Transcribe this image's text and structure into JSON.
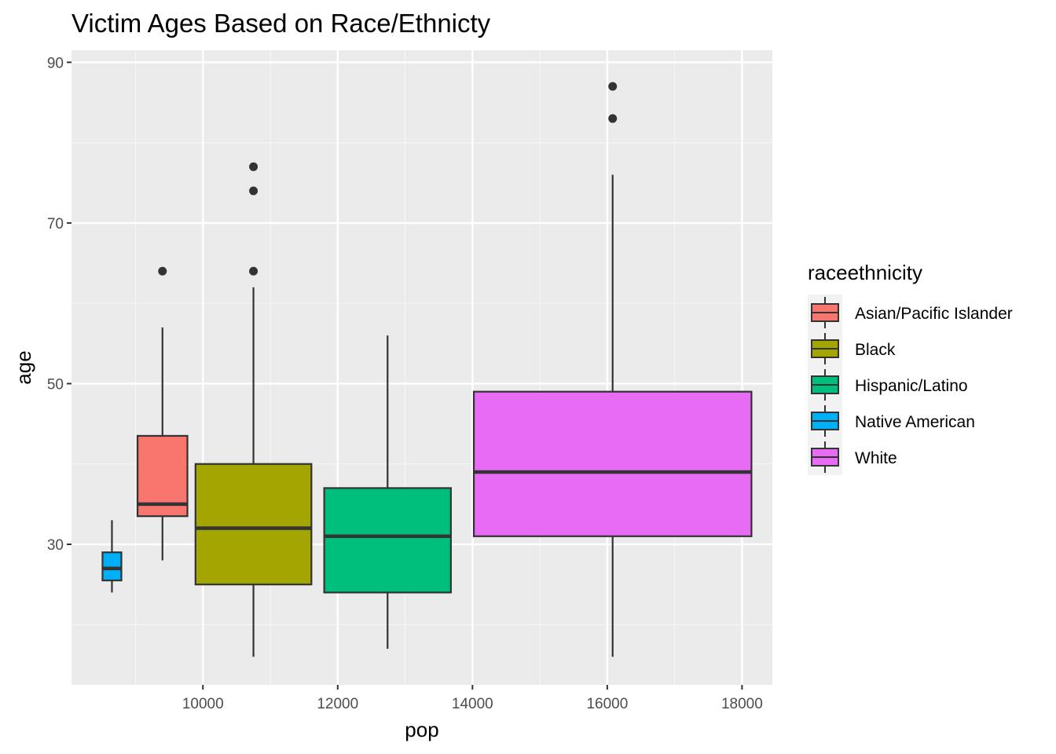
{
  "chart_data": {
    "type": "boxplot",
    "title": "Victim Ages Based on Race/Ethnicty",
    "xlabel": "pop",
    "ylabel": "age",
    "xlim": [
      8050,
      18450
    ],
    "ylim": [
      12.5,
      91.5
    ],
    "x_ticks": [
      10000,
      12000,
      14000,
      16000,
      18000
    ],
    "y_ticks": [
      30,
      50,
      70,
      90
    ],
    "grid": true,
    "legend": {
      "title": "raceethnicity",
      "position": "right",
      "entries": [
        "Asian/Pacific Islander",
        "Black",
        "Hispanic/Latino",
        "Native American",
        "White"
      ]
    },
    "series": [
      {
        "name": "Asian/Pacific Islander",
        "color": "#F8766D",
        "x_min": 9030,
        "x_max": 9770,
        "x_center": 9400,
        "whisker_low": 28,
        "q1": 33.5,
        "median": 35,
        "q3": 43.5,
        "whisker_high": 57,
        "outliers": [
          64
        ]
      },
      {
        "name": "Black",
        "color": "#A3A500",
        "x_min": 9890,
        "x_max": 11610,
        "x_center": 10750,
        "whisker_low": 16,
        "q1": 25,
        "median": 32,
        "q3": 40,
        "whisker_high": 62,
        "outliers": [
          64,
          74,
          77
        ]
      },
      {
        "name": "Hispanic/Latino",
        "color": "#00BF7D",
        "x_min": 11800,
        "x_max": 13680,
        "x_center": 12740,
        "whisker_low": 17,
        "q1": 24,
        "median": 31,
        "q3": 37,
        "whisker_high": 56,
        "outliers": []
      },
      {
        "name": "Native American",
        "color": "#00B0F6",
        "x_min": 8510,
        "x_max": 8790,
        "x_center": 8650,
        "whisker_low": 24,
        "q1": 25.5,
        "median": 27,
        "q3": 29,
        "whisker_high": 33,
        "outliers": []
      },
      {
        "name": "White",
        "color": "#E76BF3",
        "x_min": 14020,
        "x_max": 18140,
        "x_center": 16080,
        "whisker_low": 16,
        "q1": 31,
        "median": 39,
        "q3": 49,
        "whisker_high": 76,
        "outliers": [
          83,
          87
        ]
      }
    ]
  },
  "colors": {
    "panel_background": "#EBEBEB",
    "grid_major": "#FFFFFF",
    "grid_minor": "#F5F5F5",
    "outline": "#333333",
    "legend_key_background": "#F2F2F2"
  }
}
